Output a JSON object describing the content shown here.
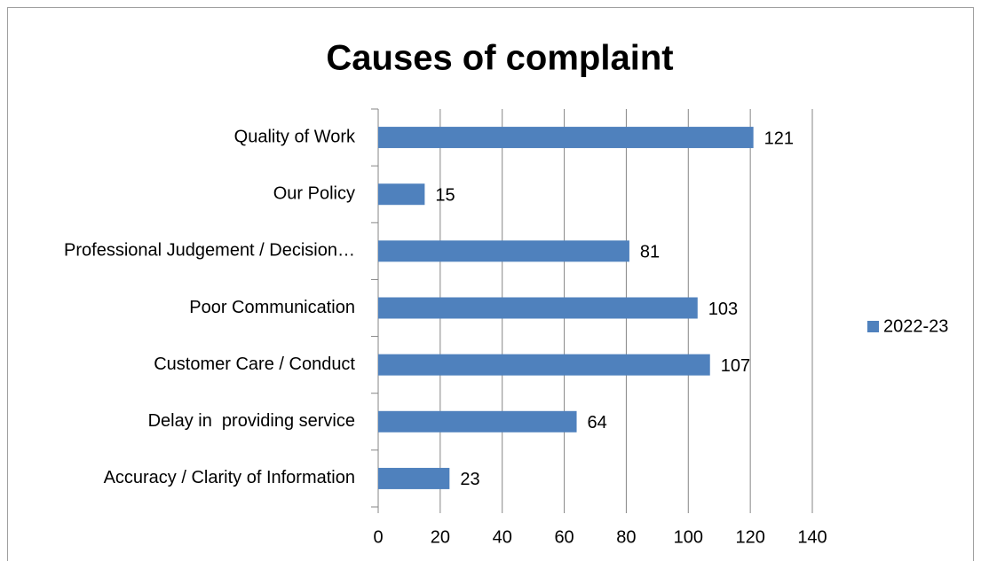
{
  "chart_data": {
    "type": "bar",
    "orientation": "horizontal",
    "title": "Causes of complaint",
    "categories": [
      "Quality of Work",
      "Our Policy",
      "Professional Judgement / Decision…",
      "Poor Communication",
      "Customer Care / Conduct",
      "Delay in  providing service",
      "Accuracy / Clarity of Information"
    ],
    "series": [
      {
        "name": "2022-23",
        "color": "#4f81bd",
        "values": [
          121,
          15,
          81,
          103,
          107,
          64,
          23
        ]
      }
    ],
    "xlim": [
      0,
      140
    ],
    "xticks": [
      0,
      20,
      40,
      60,
      80,
      100,
      120,
      140
    ],
    "grid": true,
    "legend": "right"
  }
}
